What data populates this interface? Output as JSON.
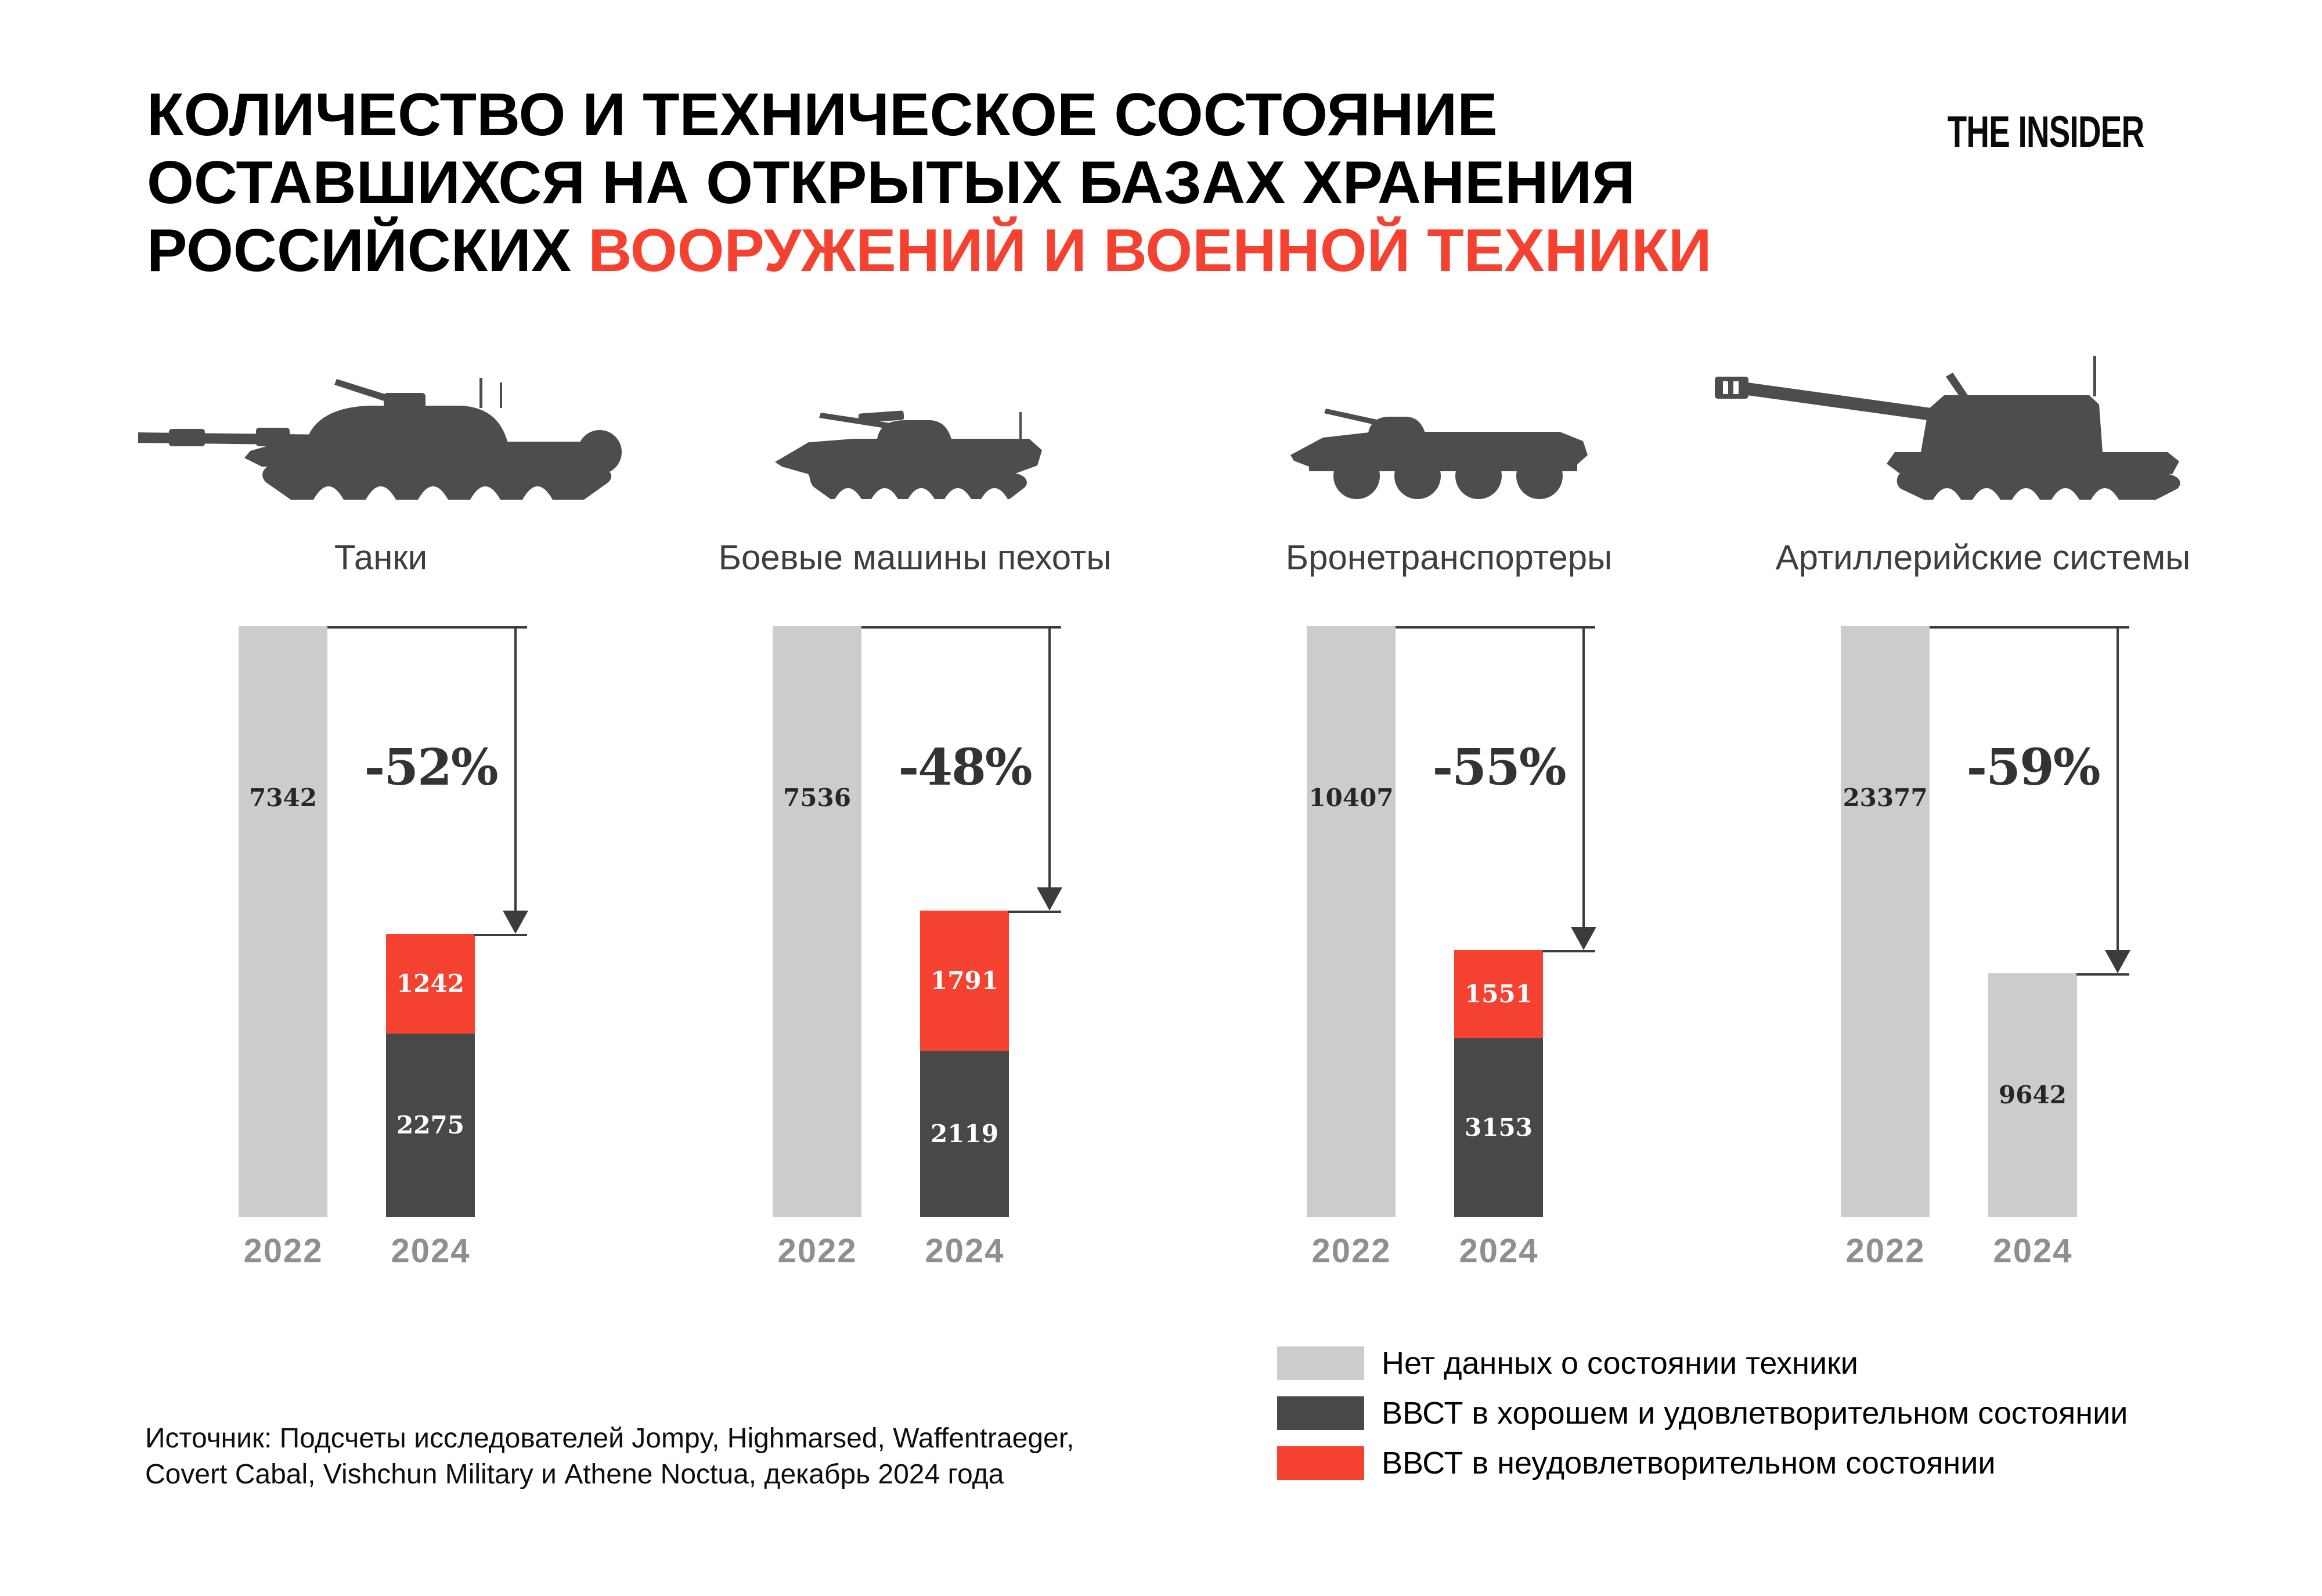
{
  "title": {
    "line1": "КОЛИЧЕСТВО И ТЕХНИЧЕСКОЕ СОСТОЯНИЕ",
    "line2": "ОСТАВШИХСЯ НА ОТКРЫТЫХ БАЗАХ ХРАНЕНИЯ",
    "line3_black": "РОССИЙСКИХ",
    "line3_red": "ВООРУЖЕНИЙ И ВОЕННОЙ ТЕХНИКИ"
  },
  "logo_text": "THE INSIDER",
  "colors": {
    "no_data": "#cccccc",
    "good": "#484848",
    "bad": "#f5412f",
    "title_accent": "#f5412f",
    "year_label": "#8f8f8f",
    "arrow": "#3c3c3c",
    "silhouette": "#4d4d4d"
  },
  "chart_data": {
    "type": "bar",
    "title": "Количество и техническое состояние оставшихся на открытых базах хранения российских вооружений и военной техники",
    "categories": [
      "2022",
      "2024"
    ],
    "legend_position": "bottom-right",
    "grid": false,
    "groups": [
      {
        "label": "Танки",
        "icon": "tank-icon",
        "change_label": "-52%",
        "values": {
          "2022_no_data": 7342,
          "2024_bad": 1242,
          "2024_good": 2275
        }
      },
      {
        "label": "Боевые машины пехоты",
        "icon": "ifv-icon",
        "change_label": "-48%",
        "values": {
          "2022_no_data": 7536,
          "2024_bad": 1791,
          "2024_good": 2119
        }
      },
      {
        "label": "Бронетранспортеры",
        "icon": "apc-icon",
        "change_label": "-55%",
        "values": {
          "2022_no_data": 10407,
          "2024_bad": 1551,
          "2024_good": 3153
        }
      },
      {
        "label": "Артиллерийские системы",
        "icon": "artillery-icon",
        "change_label": "-59%",
        "values": {
          "2022_no_data": 23377,
          "2024_no_data": 9642
        }
      }
    ]
  },
  "legend": [
    {
      "label": "Нет данных о состоянии техники",
      "color": "#cccccc"
    },
    {
      "label": "ВВСТ в хорошем и удовлетворительном состоянии",
      "color": "#484848"
    },
    {
      "label": "ВВСТ в неудовлетворительном состоянии",
      "color": "#f5412f"
    }
  ],
  "source": {
    "line1": "Источник: Подсчеты исследователей Jompy, Highmarsed, Waffentraeger,",
    "line2": "Covert Cabal, Vishchun Military и Athene Noctua, декабрь 2024 года"
  }
}
